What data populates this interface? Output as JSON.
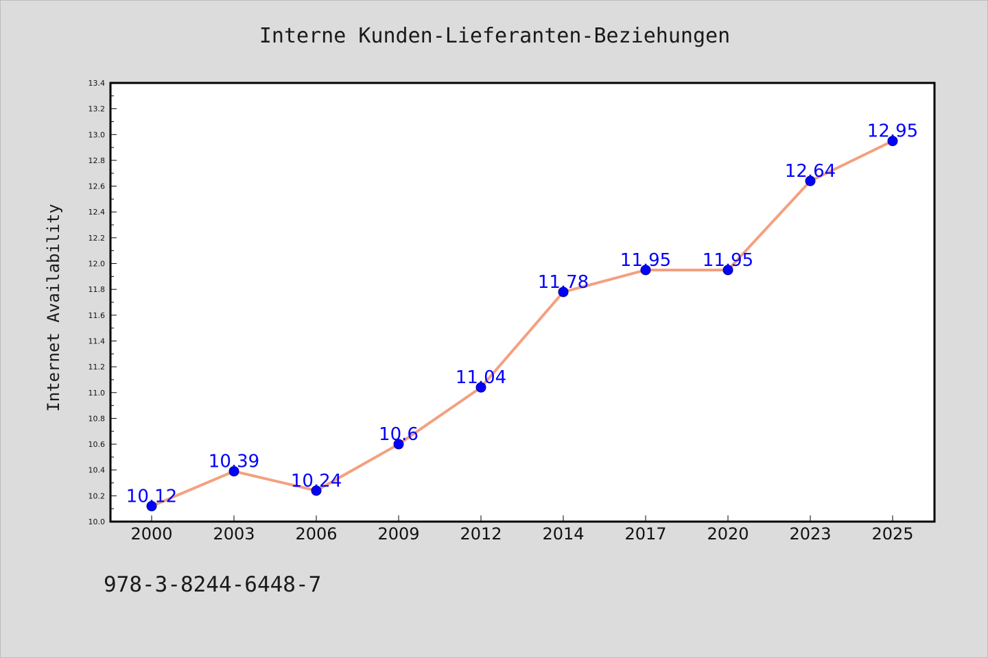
{
  "chart_data": {
    "type": "line",
    "title": "Interne Kunden-Lieferanten-Beziehungen",
    "xlabel": "",
    "ylabel": "Internet Availability",
    "categories": [
      "2000",
      "2003",
      "2006",
      "2009",
      "2012",
      "2014",
      "2017",
      "2020",
      "2023",
      "2025"
    ],
    "series": [
      {
        "values": [
          10.12,
          10.39,
          10.24,
          10.6,
          11.04,
          11.78,
          11.95,
          11.95,
          12.64,
          12.95
        ],
        "data_labels": [
          "10.12",
          "10.39",
          "10.24",
          "10.6",
          "11.04",
          "11.78",
          "11.95",
          "11.95",
          "12.64",
          "12.95"
        ]
      }
    ],
    "ylim": [
      10.0,
      13.4
    ],
    "y_ticks": [
      "10.0",
      "10.2",
      "10.4",
      "10.6",
      "10.8",
      "11.0",
      "11.2",
      "11.4",
      "11.6",
      "11.8",
      "12.0",
      "12.2",
      "12.4",
      "12.6",
      "12.8",
      "13.0",
      "13.2",
      "13.4"
    ],
    "grid": false,
    "legend": "none"
  },
  "colors": {
    "background": "#dcdcdc",
    "plot_background": "#ffffff",
    "line": "#f4a07f",
    "marker": "#0000ff",
    "data_label": "#0000ff",
    "axis": "#000000"
  },
  "footer": {
    "code": "978-3-8244-6448-7"
  }
}
